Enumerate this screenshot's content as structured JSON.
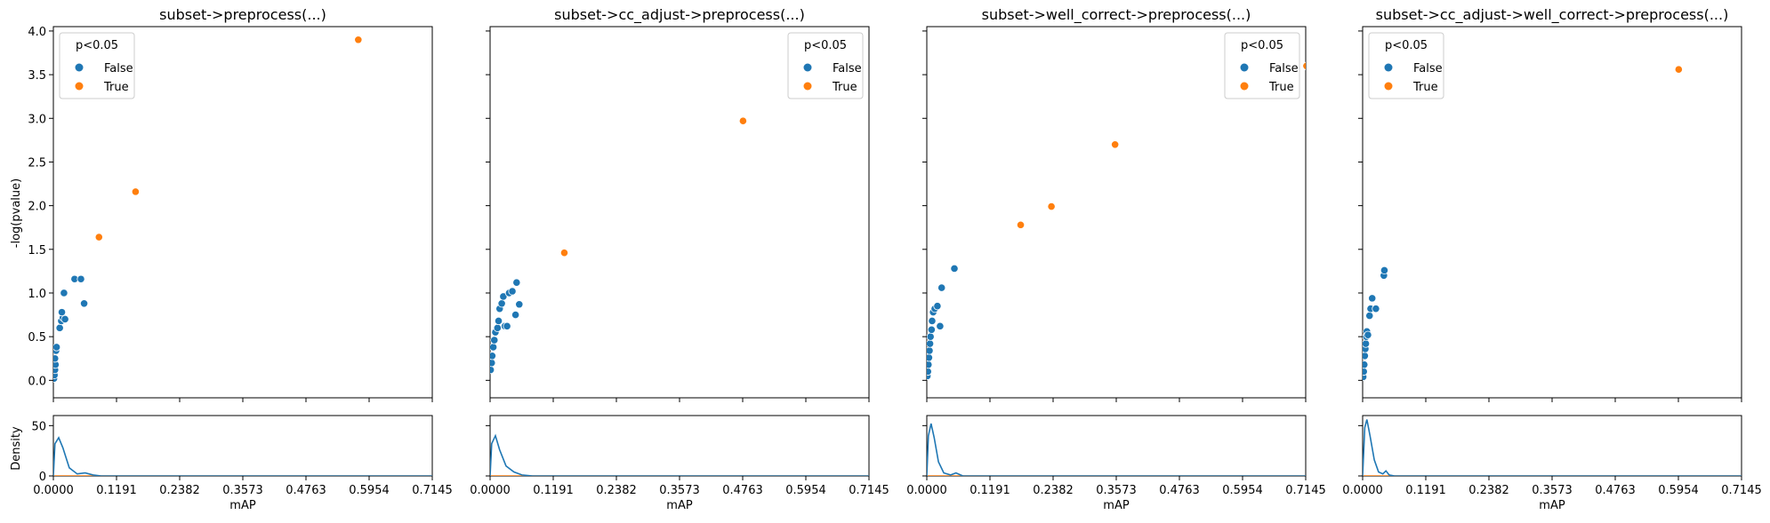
{
  "figure": {
    "ylabel": "-log(pvalue)",
    "density_ylabel": "Density",
    "xlabel": "mAP",
    "legend_title": "p<0.05",
    "legend_false": "False",
    "legend_true": "True",
    "color_false": "#1f77b4",
    "color_true": "#ff7f0e"
  },
  "chart_data": [
    {
      "type": "scatter",
      "title": "subset->preprocess(...)",
      "xlabel": "mAP",
      "ylabel": "-log(pvalue)",
      "xlim": [
        0,
        0.7145
      ],
      "ylim": [
        -0.2,
        4.05
      ],
      "x_ticks": [
        "0.0000",
        "0.1191",
        "0.2382",
        "0.3573",
        "0.4763",
        "0.5954",
        "0.7145"
      ],
      "y_ticks": [
        "0.0",
        "0.5",
        "1.0",
        "1.5",
        "2.0",
        "2.5",
        "3.0",
        "3.5",
        "4.0"
      ],
      "legend_position": "top-left",
      "series": [
        {
          "name": "False",
          "points": [
            [
              0.001,
              0.02
            ],
            [
              0.002,
              0.06
            ],
            [
              0.003,
              0.12
            ],
            [
              0.004,
              0.18
            ],
            [
              0.003,
              0.25
            ],
            [
              0.005,
              0.34
            ],
            [
              0.006,
              0.38
            ],
            [
              0.012,
              0.6
            ],
            [
              0.015,
              0.68
            ],
            [
              0.018,
              0.72
            ],
            [
              0.016,
              0.78
            ],
            [
              0.022,
              0.7
            ],
            [
              0.02,
              1.0
            ],
            [
              0.04,
              1.16
            ],
            [
              0.052,
              1.16
            ],
            [
              0.058,
              0.88
            ]
          ]
        },
        {
          "name": "True",
          "points": [
            [
              0.086,
              1.64
            ],
            [
              0.155,
              2.16
            ],
            [
              0.575,
              3.9
            ]
          ]
        }
      ],
      "density": {
        "False": [
          [
            0.0,
            0
          ],
          [
            0.003,
            32
          ],
          [
            0.01,
            38
          ],
          [
            0.018,
            28
          ],
          [
            0.03,
            8
          ],
          [
            0.045,
            2
          ],
          [
            0.06,
            3
          ],
          [
            0.075,
            1
          ],
          [
            0.09,
            0
          ],
          [
            0.7145,
            0
          ]
        ],
        "True": [
          [
            0.0,
            0
          ],
          [
            0.7145,
            0
          ]
        ]
      },
      "density_ylim": [
        0,
        60
      ],
      "density_yticks": [
        "0",
        "50"
      ]
    },
    {
      "type": "scatter",
      "title": "subset->cc_adjust->preprocess(...)",
      "xlabel": "mAP",
      "xlim": [
        0,
        0.7145
      ],
      "ylim": [
        -0.2,
        4.05
      ],
      "x_ticks": [
        "0.0000",
        "0.1191",
        "0.2382",
        "0.3573",
        "0.4763",
        "0.5954",
        "0.7145"
      ],
      "legend_position": "top-right",
      "series": [
        {
          "name": "False",
          "points": [
            [
              0.001,
              0.12
            ],
            [
              0.003,
              0.2
            ],
            [
              0.004,
              0.28
            ],
            [
              0.006,
              0.38
            ],
            [
              0.008,
              0.46
            ],
            [
              0.01,
              0.55
            ],
            [
              0.014,
              0.6
            ],
            [
              0.016,
              0.68
            ],
            [
              0.018,
              0.82
            ],
            [
              0.022,
              0.88
            ],
            [
              0.025,
              0.96
            ],
            [
              0.028,
              0.62
            ],
            [
              0.032,
              0.62
            ],
            [
              0.036,
              1.0
            ],
            [
              0.042,
              1.02
            ],
            [
              0.048,
              0.75
            ],
            [
              0.05,
              1.12
            ],
            [
              0.055,
              0.87
            ]
          ]
        },
        {
          "name": "True",
          "points": [
            [
              0.14,
              1.46
            ],
            [
              0.477,
              2.97
            ]
          ]
        }
      ],
      "density": {
        "False": [
          [
            0.0,
            0
          ],
          [
            0.003,
            32
          ],
          [
            0.01,
            40
          ],
          [
            0.018,
            26
          ],
          [
            0.03,
            10
          ],
          [
            0.045,
            4
          ],
          [
            0.06,
            1
          ],
          [
            0.08,
            0
          ],
          [
            0.7145,
            0
          ]
        ],
        "True": [
          [
            0.0,
            0
          ],
          [
            0.7145,
            0
          ]
        ]
      },
      "density_ylim": [
        0,
        60
      ],
      "density_yticks": [
        "0",
        "50"
      ]
    },
    {
      "type": "scatter",
      "title": "subset->well_correct->preprocess(...)",
      "xlabel": "mAP",
      "xlim": [
        0,
        0.7145
      ],
      "ylim": [
        -0.2,
        4.05
      ],
      "x_ticks": [
        "0.0000",
        "0.1191",
        "0.2382",
        "0.3573",
        "0.4763",
        "0.5954",
        "0.7145"
      ],
      "legend_position": "top-right",
      "series": [
        {
          "name": "False",
          "points": [
            [
              0.001,
              0.05
            ],
            [
              0.002,
              0.1
            ],
            [
              0.003,
              0.18
            ],
            [
              0.004,
              0.26
            ],
            [
              0.005,
              0.34
            ],
            [
              0.006,
              0.42
            ],
            [
              0.007,
              0.5
            ],
            [
              0.009,
              0.58
            ],
            [
              0.01,
              0.68
            ],
            [
              0.012,
              0.78
            ],
            [
              0.015,
              0.82
            ],
            [
              0.02,
              0.85
            ],
            [
              0.025,
              0.62
            ],
            [
              0.028,
              1.06
            ],
            [
              0.052,
              1.28
            ]
          ]
        },
        {
          "name": "True",
          "points": [
            [
              0.177,
              1.78
            ],
            [
              0.235,
              1.99
            ],
            [
              0.355,
              2.7
            ],
            [
              0.716,
              3.6
            ]
          ]
        }
      ],
      "density": {
        "False": [
          [
            0.0,
            0
          ],
          [
            0.003,
            40
          ],
          [
            0.008,
            52
          ],
          [
            0.014,
            38
          ],
          [
            0.022,
            14
          ],
          [
            0.032,
            3
          ],
          [
            0.045,
            1
          ],
          [
            0.055,
            3
          ],
          [
            0.068,
            0
          ],
          [
            0.7145,
            0
          ]
        ],
        "True": [
          [
            0.0,
            0
          ],
          [
            0.7145,
            0
          ]
        ]
      },
      "density_ylim": [
        0,
        60
      ],
      "density_yticks": [
        "0",
        "50"
      ]
    },
    {
      "type": "scatter",
      "title": "subset->cc_adjust->well_correct->preprocess(...)",
      "xlabel": "mAP",
      "xlim": [
        0,
        0.7145
      ],
      "ylim": [
        -0.2,
        4.05
      ],
      "x_ticks": [
        "0.0000",
        "0.1191",
        "0.2382",
        "0.3573",
        "0.4763",
        "0.5954",
        "0.7145"
      ],
      "legend_position": "top-left",
      "series": [
        {
          "name": "False",
          "points": [
            [
              0.001,
              0.04
            ],
            [
              0.002,
              0.1
            ],
            [
              0.003,
              0.18
            ],
            [
              0.004,
              0.28
            ],
            [
              0.005,
              0.36
            ],
            [
              0.006,
              0.42
            ],
            [
              0.007,
              0.5
            ],
            [
              0.008,
              0.56
            ],
            [
              0.01,
              0.52
            ],
            [
              0.013,
              0.74
            ],
            [
              0.015,
              0.82
            ],
            [
              0.018,
              0.94
            ],
            [
              0.025,
              0.82
            ],
            [
              0.04,
              1.2
            ],
            [
              0.041,
              1.26
            ]
          ]
        },
        {
          "name": "True",
          "points": [
            [
              0.596,
              3.56
            ]
          ]
        }
      ],
      "density": {
        "False": [
          [
            0.0,
            0
          ],
          [
            0.004,
            48
          ],
          [
            0.008,
            56
          ],
          [
            0.014,
            40
          ],
          [
            0.022,
            16
          ],
          [
            0.03,
            4
          ],
          [
            0.038,
            2
          ],
          [
            0.044,
            5
          ],
          [
            0.05,
            1
          ],
          [
            0.06,
            0
          ],
          [
            0.7145,
            0
          ]
        ],
        "True": [
          [
            0.0,
            0
          ],
          [
            0.7145,
            0
          ]
        ]
      },
      "density_ylim": [
        0,
        60
      ],
      "density_yticks": [
        "0",
        "50"
      ]
    }
  ]
}
